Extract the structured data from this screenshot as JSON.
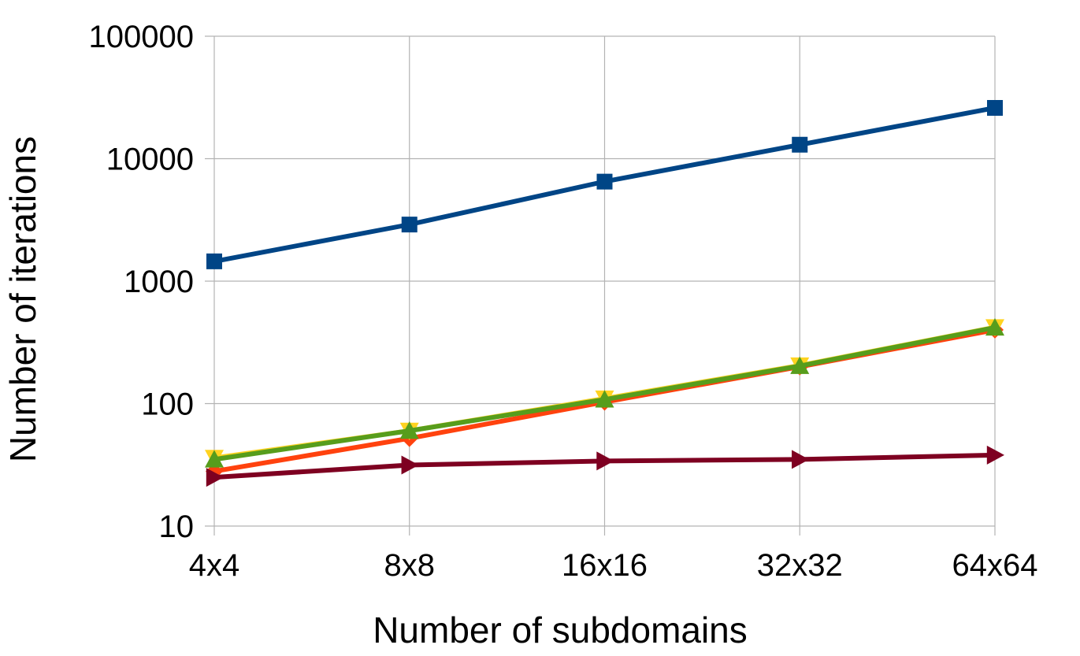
{
  "chart_data": {
    "type": "line",
    "title": "",
    "xlabel": "Number of subdomains",
    "ylabel": "Number of iterations",
    "y_scale": "log",
    "ylim": [
      10,
      100000
    ],
    "yticks": [
      "10",
      "100",
      "1000",
      "10000",
      "100000"
    ],
    "ytick_values": [
      10,
      100,
      1000,
      10000,
      100000
    ],
    "categories": [
      "4x4",
      "8x8",
      "16x16",
      "32x32",
      "64x64"
    ],
    "grid": true,
    "legend": "none",
    "series": [
      {
        "color": "#004586",
        "marker": "square",
        "values": [
          1450,
          2900,
          6500,
          13000,
          26000
        ]
      },
      {
        "color": "#ff420e",
        "marker": "diamond",
        "values": [
          28,
          52,
          103,
          200,
          400
        ]
      },
      {
        "color": "#ffd320",
        "marker": "triangle-down",
        "values": [
          36,
          60,
          110,
          205,
          420
        ]
      },
      {
        "color": "#579d1c",
        "marker": "triangle-up",
        "values": [
          35,
          60,
          108,
          203,
          418
        ]
      },
      {
        "color": "#7e0021",
        "marker": "triangle-right",
        "values": [
          25,
          31.5,
          34,
          35,
          38
        ]
      }
    ]
  }
}
